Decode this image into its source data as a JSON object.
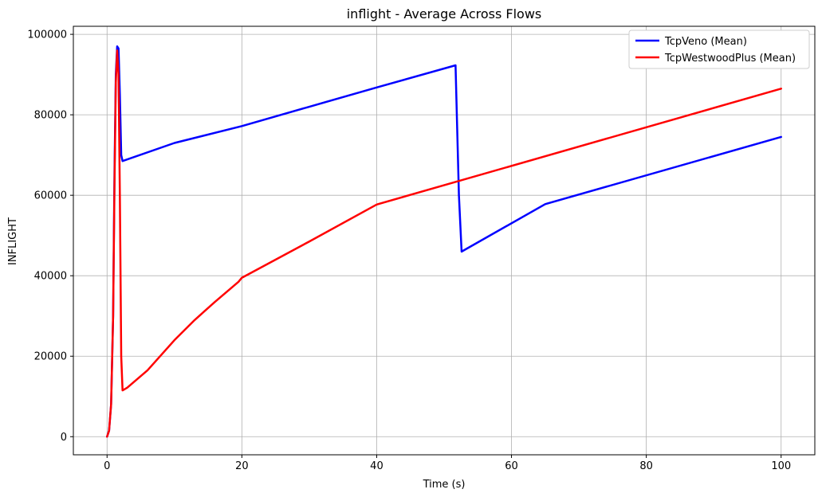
{
  "chart_data": {
    "type": "line",
    "title": "inflight - Average Across Flows",
    "xlabel": "Time (s)",
    "ylabel": "INFLIGHT",
    "xlim": [
      -5,
      105
    ],
    "ylim": [
      -4500,
      102000
    ],
    "xticks": [
      0,
      20,
      40,
      60,
      80,
      100
    ],
    "xtick_labels": [
      "0",
      "20",
      "40",
      "60",
      "80",
      "100"
    ],
    "yticks": [
      0,
      20000,
      40000,
      60000,
      80000,
      100000
    ],
    "ytick_labels": [
      "0",
      "20000",
      "40000",
      "60000",
      "80000",
      "100000"
    ],
    "grid": true,
    "legend_position": "top-right",
    "series": [
      {
        "name": "TcpVeno (Mean)",
        "color": "#0000ff",
        "x": [
          0,
          0.3,
          0.6,
          0.9,
          1.1,
          1.3,
          1.5,
          1.7,
          1.9,
          2.1,
          2.3,
          10,
          20,
          30,
          40,
          51.7,
          52.2,
          52.6,
          65,
          100
        ],
        "y": [
          0,
          1500,
          8000,
          30000,
          65000,
          90000,
          97000,
          96500,
          85000,
          70000,
          68500,
          73000,
          77200,
          82000,
          86800,
          92300,
          60000,
          46000,
          57800,
          74500
        ]
      },
      {
        "name": "TcpWestwoodPlus (Mean)",
        "color": "#ff0000",
        "x": [
          0,
          0.3,
          0.6,
          0.9,
          1.1,
          1.3,
          1.5,
          1.7,
          1.9,
          2.1,
          2.3,
          3,
          6,
          10,
          13,
          16,
          19.5,
          20,
          30,
          40,
          100
        ],
        "y": [
          0,
          1500,
          8000,
          30000,
          62000,
          88000,
          96000,
          90000,
          60000,
          20000,
          11500,
          12200,
          16500,
          24000,
          29000,
          33500,
          38500,
          39500,
          48500,
          57700,
          86500
        ]
      }
    ]
  }
}
